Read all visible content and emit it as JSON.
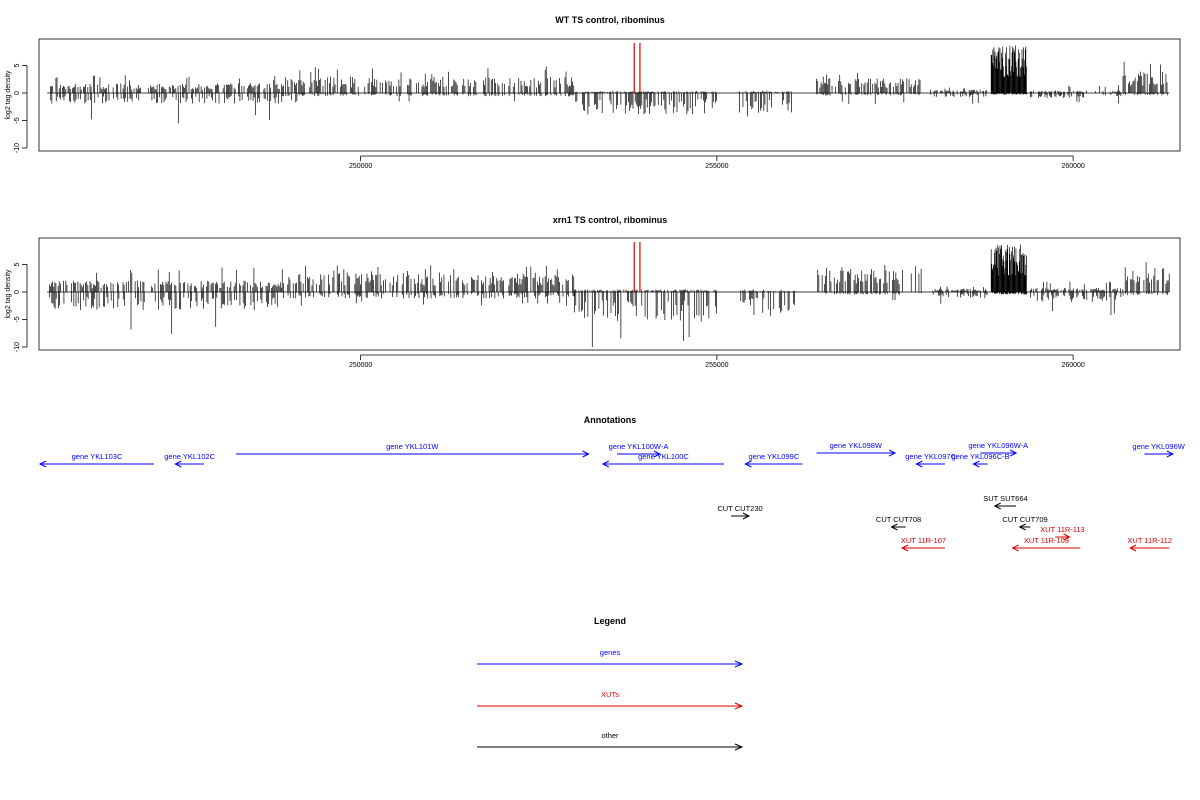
{
  "chart_data": [
    {
      "type": "bar",
      "title": "WT TS control, ribominus",
      "ylabel": "log2 tag density",
      "xlabel": "",
      "xlim": [
        245500,
        261500
      ],
      "ylim": [
        -10,
        10
      ],
      "yticks": [
        -10,
        -5,
        0,
        5
      ],
      "xticks": [
        250000,
        255000,
        260000
      ],
      "grid": false,
      "marker_lines_x": [
        253840,
        253920
      ],
      "marker_color": "#dd0000",
      "segments": [
        {
          "start": 245600,
          "end": 248900,
          "pos_mean": 1.2,
          "pos_max": 3.2,
          "neg_mean": -1.3,
          "neg_max": -5.5
        },
        {
          "start": 248900,
          "end": 253000,
          "pos_mean": 2.0,
          "pos_max": 4.8,
          "neg_mean": -0.4,
          "neg_max": -1.8
        },
        {
          "start": 253000,
          "end": 255000,
          "pos_mean": 0.2,
          "pos_max": 0.4,
          "neg_mean": -2.6,
          "neg_max": -8.0
        },
        {
          "start": 255300,
          "end": 256100,
          "pos_mean": 0.2,
          "pos_max": 0.5,
          "neg_mean": -2.4,
          "neg_max": -4.5
        },
        {
          "start": 256400,
          "end": 257900,
          "pos_mean": 1.8,
          "pos_max": 4.0,
          "neg_mean": -0.3,
          "neg_max": -2.0
        },
        {
          "start": 258000,
          "end": 258800,
          "pos_mean": 0.4,
          "pos_max": 1.0,
          "neg_mean": -0.5,
          "neg_max": -2.2
        },
        {
          "start": 258850,
          "end": 259350,
          "pos_mean": 5.8,
          "pos_max": 9.0,
          "neg_mean": -0.2,
          "neg_max": -0.4
        },
        {
          "start": 259400,
          "end": 260700,
          "pos_mean": 0.3,
          "pos_max": 1.5,
          "neg_mean": -0.6,
          "neg_max": -2.2
        },
        {
          "start": 260700,
          "end": 261350,
          "pos_mean": 2.6,
          "pos_max": 5.8,
          "neg_mean": -0.3,
          "neg_max": -1.5
        }
      ]
    },
    {
      "type": "bar",
      "title": "xrn1 TS control, ribominus",
      "ylabel": "log2 tag density",
      "xlabel": "",
      "xlim": [
        245500,
        261500
      ],
      "ylim": [
        -10,
        10
      ],
      "yticks": [
        -10,
        -5,
        0,
        5
      ],
      "xticks": [
        250000,
        255000,
        260000
      ],
      "grid": false,
      "marker_lines_x": [
        253840,
        253920
      ],
      "marker_color": "#dd0000",
      "segments": [
        {
          "start": 245600,
          "end": 248900,
          "pos_mean": 1.4,
          "pos_max": 4.5,
          "neg_mean": -2.2,
          "neg_max": -8.5
        },
        {
          "start": 248900,
          "end": 253000,
          "pos_mean": 2.3,
          "pos_max": 5.0,
          "neg_mean": -0.8,
          "neg_max": -2.5
        },
        {
          "start": 253000,
          "end": 255000,
          "pos_mean": 0.3,
          "pos_max": 0.5,
          "neg_mean": -3.6,
          "neg_max": -10.0
        },
        {
          "start": 255300,
          "end": 256100,
          "pos_mean": 0.2,
          "pos_max": 0.5,
          "neg_mean": -2.6,
          "neg_max": -5.0
        },
        {
          "start": 256400,
          "end": 257900,
          "pos_mean": 2.8,
          "pos_max": 5.5,
          "neg_mean": -0.3,
          "neg_max": -2.0
        },
        {
          "start": 258000,
          "end": 258800,
          "pos_mean": 0.4,
          "pos_max": 1.0,
          "neg_mean": -0.8,
          "neg_max": -2.5
        },
        {
          "start": 258850,
          "end": 259350,
          "pos_mean": 5.8,
          "pos_max": 9.0,
          "neg_mean": -0.3,
          "neg_max": -0.6
        },
        {
          "start": 259400,
          "end": 260700,
          "pos_mean": 0.5,
          "pos_max": 2.0,
          "neg_mean": -1.2,
          "neg_max": -4.5
        },
        {
          "start": 260700,
          "end": 261350,
          "pos_mean": 3.0,
          "pos_max": 7.5,
          "neg_mean": -0.4,
          "neg_max": -1.5
        }
      ]
    }
  ],
  "annotations": {
    "title": "Annotations",
    "features": [
      {
        "label": "gene YKL103C",
        "start": 247100,
        "end": 245500,
        "row": 2,
        "color": "#0000ff"
      },
      {
        "label": "gene YKL102C",
        "start": 247800,
        "end": 247400,
        "row": 2,
        "color": "#0000ff"
      },
      {
        "label": "gene YKL101W",
        "start": 248250,
        "end": 253200,
        "row": 1,
        "color": "#0000ff"
      },
      {
        "label": "gene YKL100W-A",
        "start": 253600,
        "end": 254200,
        "row": 1,
        "color": "#0000ff"
      },
      {
        "label": "gene YKL100C",
        "start": 255100,
        "end": 253400,
        "row": 2,
        "color": "#0000ff"
      },
      {
        "label": "gene YKL099C",
        "start": 256200,
        "end": 255400,
        "row": 2,
        "color": "#0000ff"
      },
      {
        "label": "gene YKL098W",
        "start": 256400,
        "end": 257500,
        "row": 0,
        "color": "#0000ff"
      },
      {
        "label": "gene YKL097C",
        "start": 258200,
        "end": 257800,
        "row": 2,
        "color": "#0000ff"
      },
      {
        "label": "gene YKL096W-A",
        "start": 258700,
        "end": 259200,
        "row": 0,
        "color": "#0000ff"
      },
      {
        "label": "gene YKL096C-B",
        "start": 258800,
        "end": 258600,
        "row": 2,
        "color": "#0000ff"
      },
      {
        "label": "gene YKL096W",
        "start": 261000,
        "end": 261400,
        "row": 1,
        "color": "#0000ff"
      },
      {
        "label": "SUT SUT664",
        "start": 259200,
        "end": 258900,
        "row": 5,
        "color": "#000000"
      },
      {
        "label": "CUT CUT230",
        "start": 255200,
        "end": 255450,
        "row": 6,
        "color": "#000000"
      },
      {
        "label": "CUT CUT708",
        "start": 257650,
        "end": 257450,
        "row": 7,
        "color": "#000000"
      },
      {
        "label": "CUT CUT709",
        "start": 259400,
        "end": 259250,
        "row": 7,
        "color": "#000000"
      },
      {
        "label": "XUT 11R-107",
        "start": 258200,
        "end": 257600,
        "row": 9,
        "color": "#dd0000"
      },
      {
        "label": "XUT 11R-113",
        "start": 259750,
        "end": 259950,
        "row": 8,
        "color": "#dd0000"
      },
      {
        "label": "XUT 11R-109",
        "start": 260100,
        "end": 259150,
        "row": 9,
        "color": "#dd0000"
      },
      {
        "label": "XUT 11R-112",
        "start": 261350,
        "end": 260800,
        "row": 9,
        "color": "#dd0000"
      }
    ]
  },
  "legend": {
    "title": "Legend",
    "items": [
      {
        "label": "genes",
        "color": "#0000ff"
      },
      {
        "label": "XUTs",
        "color": "#dd0000"
      },
      {
        "label": "other",
        "color": "#000000"
      }
    ]
  }
}
